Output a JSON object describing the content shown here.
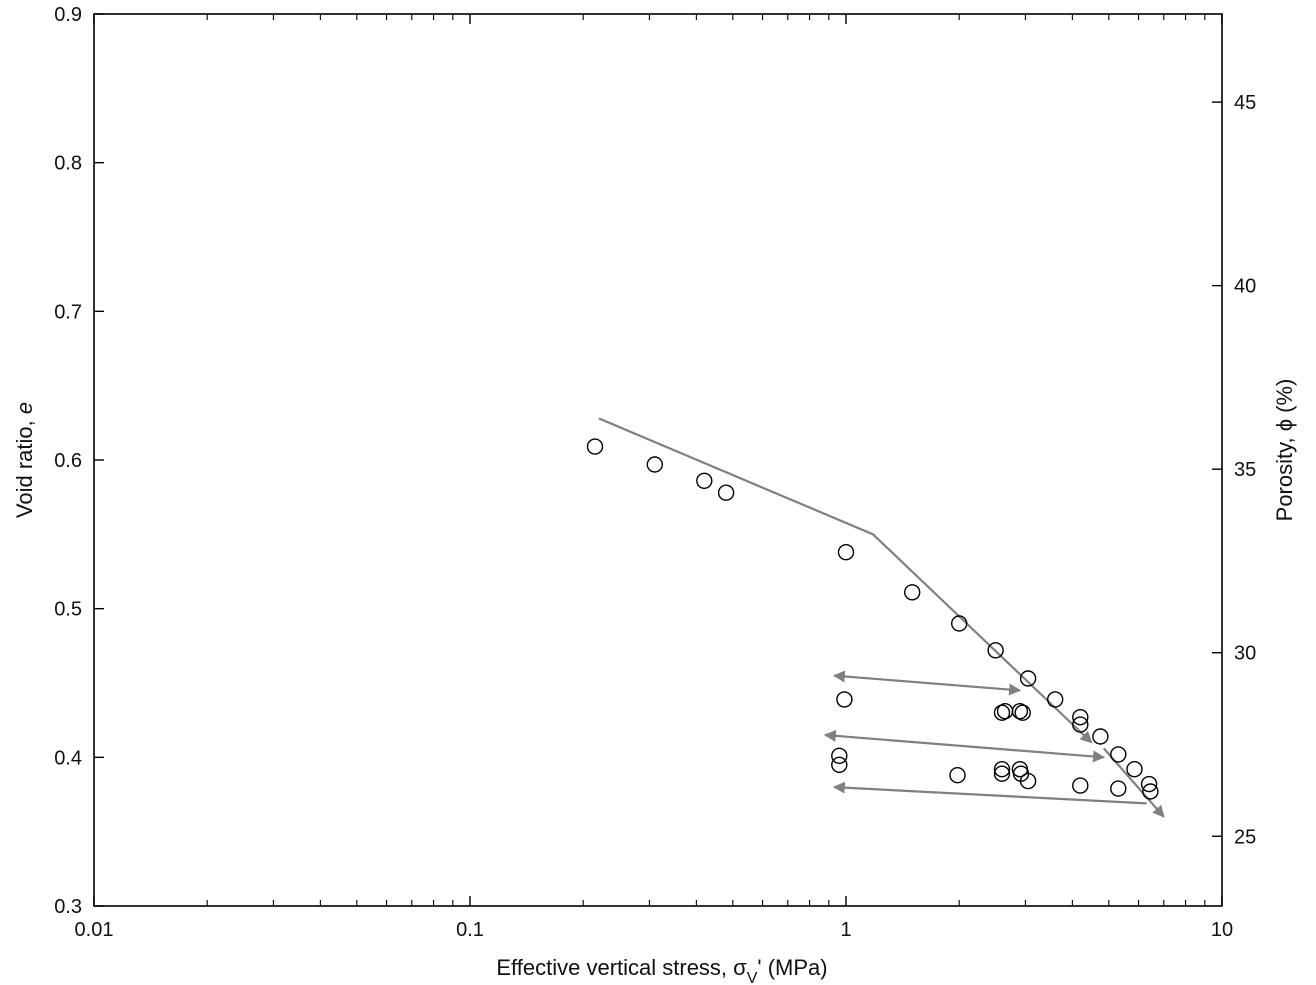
{
  "chart_data": {
    "type": "scatter",
    "x_scale": "log",
    "xlim": [
      0.01,
      10
    ],
    "ylim": [
      0.3,
      0.9
    ],
    "y2lim": [
      23.1,
      47.4
    ],
    "grid": false,
    "legend": "none",
    "xlabel_main": "Effective vertical stress, σ",
    "xlabel_sub": "V",
    "xlabel_tail": "' (MPa)",
    "ylabel_main": "Void ratio, ",
    "ylabel_italic": "e",
    "y2label": "Porosity, ϕ (%)",
    "x_ticks": [
      {
        "value": 0.01,
        "label": "0.01"
      },
      {
        "value": 0.1,
        "label": "0.1"
      },
      {
        "value": 1,
        "label": "1"
      },
      {
        "value": 10,
        "label": "10"
      }
    ],
    "y_ticks": [
      {
        "value": 0.3,
        "label": "0.3"
      },
      {
        "value": 0.4,
        "label": "0.4"
      },
      {
        "value": 0.5,
        "label": "0.5"
      },
      {
        "value": 0.6,
        "label": "0.6"
      },
      {
        "value": 0.7,
        "label": "0.7"
      },
      {
        "value": 0.8,
        "label": "0.8"
      },
      {
        "value": 0.9,
        "label": "0.9"
      }
    ],
    "y2_ticks": [
      {
        "value": 25,
        "label": "25"
      },
      {
        "value": 30,
        "label": "30"
      },
      {
        "value": 35,
        "label": "35"
      },
      {
        "value": 40,
        "label": "40"
      },
      {
        "value": 45,
        "label": "45"
      }
    ],
    "colors": {
      "line": "#808080",
      "marker": "#000000",
      "axis": "#000000"
    },
    "points": [
      {
        "x": 0.215,
        "y": 0.609
      },
      {
        "x": 0.31,
        "y": 0.597
      },
      {
        "x": 0.42,
        "y": 0.586
      },
      {
        "x": 0.48,
        "y": 0.578
      },
      {
        "x": 1.0,
        "y": 0.538
      },
      {
        "x": 1.5,
        "y": 0.511
      },
      {
        "x": 2.0,
        "y": 0.49
      },
      {
        "x": 2.5,
        "y": 0.472
      },
      {
        "x": 3.05,
        "y": 0.453
      },
      {
        "x": 3.6,
        "y": 0.439
      },
      {
        "x": 4.2,
        "y": 0.427
      },
      {
        "x": 4.2,
        "y": 0.422
      },
      {
        "x": 4.75,
        "y": 0.414
      },
      {
        "x": 5.3,
        "y": 0.402
      },
      {
        "x": 5.85,
        "y": 0.392
      },
      {
        "x": 6.4,
        "y": 0.382
      },
      {
        "x": 6.45,
        "y": 0.377
      },
      {
        "x": 0.99,
        "y": 0.439
      },
      {
        "x": 2.6,
        "y": 0.43
      },
      {
        "x": 2.65,
        "y": 0.431
      },
      {
        "x": 2.9,
        "y": 0.431
      },
      {
        "x": 2.95,
        "y": 0.43
      },
      {
        "x": 0.96,
        "y": 0.401
      },
      {
        "x": 0.96,
        "y": 0.395
      },
      {
        "x": 1.98,
        "y": 0.388
      },
      {
        "x": 2.6,
        "y": 0.392
      },
      {
        "x": 2.6,
        "y": 0.389
      },
      {
        "x": 2.9,
        "y": 0.392
      },
      {
        "x": 2.92,
        "y": 0.389
      },
      {
        "x": 3.05,
        "y": 0.384
      },
      {
        "x": 4.2,
        "y": 0.381
      },
      {
        "x": 5.3,
        "y": 0.379
      }
    ],
    "lines": [
      {
        "points": [
          [
            0.22,
            0.628
          ],
          [
            1.18,
            0.55
          ],
          [
            4.5,
            0.41
          ]
        ],
        "arrow_end": true
      },
      {
        "points": [
          [
            4.85,
            0.406
          ],
          [
            7.0,
            0.36
          ]
        ],
        "arrow_end": true
      },
      {
        "points": [
          [
            0.93,
            0.455
          ],
          [
            2.9,
            0.445
          ]
        ],
        "arrow_start": true,
        "arrow_end": true
      },
      {
        "points": [
          [
            0.88,
            0.415
          ],
          [
            4.85,
            0.4
          ]
        ],
        "arrow_start": true,
        "arrow_end": true
      },
      {
        "points": [
          [
            6.3,
            0.369
          ],
          [
            0.93,
            0.38
          ]
        ],
        "arrow_end": true
      }
    ]
  }
}
